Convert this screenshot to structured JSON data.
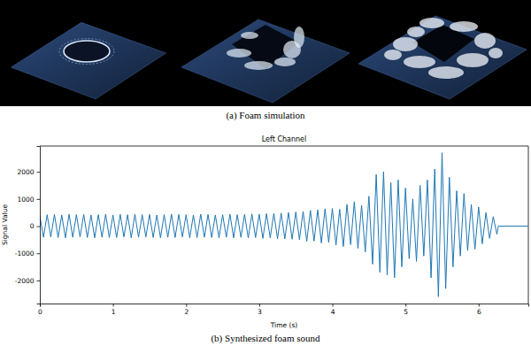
{
  "images": {
    "caption": "(a) Foam simulation"
  },
  "chart_data": {
    "type": "line",
    "title": "Left Channel",
    "x_label": "Time (s)",
    "y_label": "Signal Value",
    "caption": "(b) Synthesized foam sound",
    "color": "#1f77b4",
    "grid": false,
    "xlim": [
      0,
      6.68
    ],
    "xticks": [
      0,
      1,
      2,
      3,
      4,
      5,
      6
    ],
    "ylim": [
      -2850,
      2950
    ],
    "yticks": [
      -2000,
      -1000,
      0,
      1000,
      2000
    ],
    "x": [
      0,
      0.05,
      0.1,
      0.15,
      0.2,
      0.25,
      0.3,
      0.35,
      0.4,
      0.45,
      0.5,
      0.55,
      0.6,
      0.65,
      0.7,
      0.75,
      0.8,
      0.85,
      0.9,
      0.95,
      1,
      1.05,
      1.1,
      1.15,
      1.2,
      1.25,
      1.3,
      1.35,
      1.4,
      1.45,
      1.5,
      1.55,
      1.6,
      1.65,
      1.7,
      1.75,
      1.8,
      1.85,
      1.9,
      1.95,
      2,
      2.05,
      2.1,
      2.15,
      2.2,
      2.25,
      2.3,
      2.35,
      2.4,
      2.45,
      2.5,
      2.55,
      2.6,
      2.65,
      2.7,
      2.75,
      2.8,
      2.85,
      2.9,
      2.95,
      3,
      3.05,
      3.1,
      3.15,
      3.2,
      3.25,
      3.3,
      3.35,
      3.4,
      3.45,
      3.5,
      3.55,
      3.6,
      3.65,
      3.7,
      3.75,
      3.8,
      3.85,
      3.9,
      3.95,
      4,
      4.05,
      4.1,
      4.15,
      4.2,
      4.25,
      4.3,
      4.35,
      4.4,
      4.45,
      4.5,
      4.55,
      4.6,
      4.65,
      4.7,
      4.75,
      4.8,
      4.85,
      4.9,
      4.95,
      5,
      5.05,
      5.1,
      5.15,
      5.2,
      5.25,
      5.3,
      5.35,
      5.4,
      5.45,
      5.5,
      5.55,
      5.6,
      5.65,
      5.7,
      5.75,
      5.8,
      5.85,
      5.9,
      5.95,
      6,
      6.05,
      6.1,
      6.15,
      6.2,
      6.25,
      6.27,
      6.68
    ],
    "values": [
      380,
      -410,
      420,
      -400,
      430,
      -420,
      410,
      -430,
      440,
      -410,
      420,
      -400,
      430,
      -420,
      410,
      -430,
      420,
      -410,
      440,
      -420,
      410,
      -420,
      430,
      -400,
      420,
      -430,
      440,
      -410,
      420,
      -400,
      430,
      -420,
      410,
      -430,
      420,
      -410,
      440,
      -420,
      430,
      -400,
      420,
      -430,
      410,
      -420,
      440,
      -410,
      430,
      -420,
      410,
      -430,
      420,
      -410,
      440,
      -430,
      420,
      -410,
      430,
      -440,
      450,
      -420,
      440,
      -450,
      460,
      -430,
      470,
      -460,
      480,
      -470,
      500,
      -480,
      520,
      -500,
      540,
      -560,
      580,
      -550,
      600,
      -620,
      640,
      -600,
      650,
      -700,
      620,
      -750,
      800,
      -680,
      900,
      -820,
      760,
      -950,
      1100,
      -1400,
      1900,
      -1700,
      2000,
      -1800,
      1600,
      -1900,
      1700,
      -1500,
      1400,
      -1200,
      1000,
      -1300,
      1500,
      -1100,
      1700,
      -1900,
      2100,
      -2600,
      2700,
      -2300,
      1800,
      -1500,
      1300,
      -1100,
      1200,
      -900,
      800,
      -850,
      700,
      -650,
      500,
      -450,
      350,
      -300,
      0,
      0
    ]
  }
}
